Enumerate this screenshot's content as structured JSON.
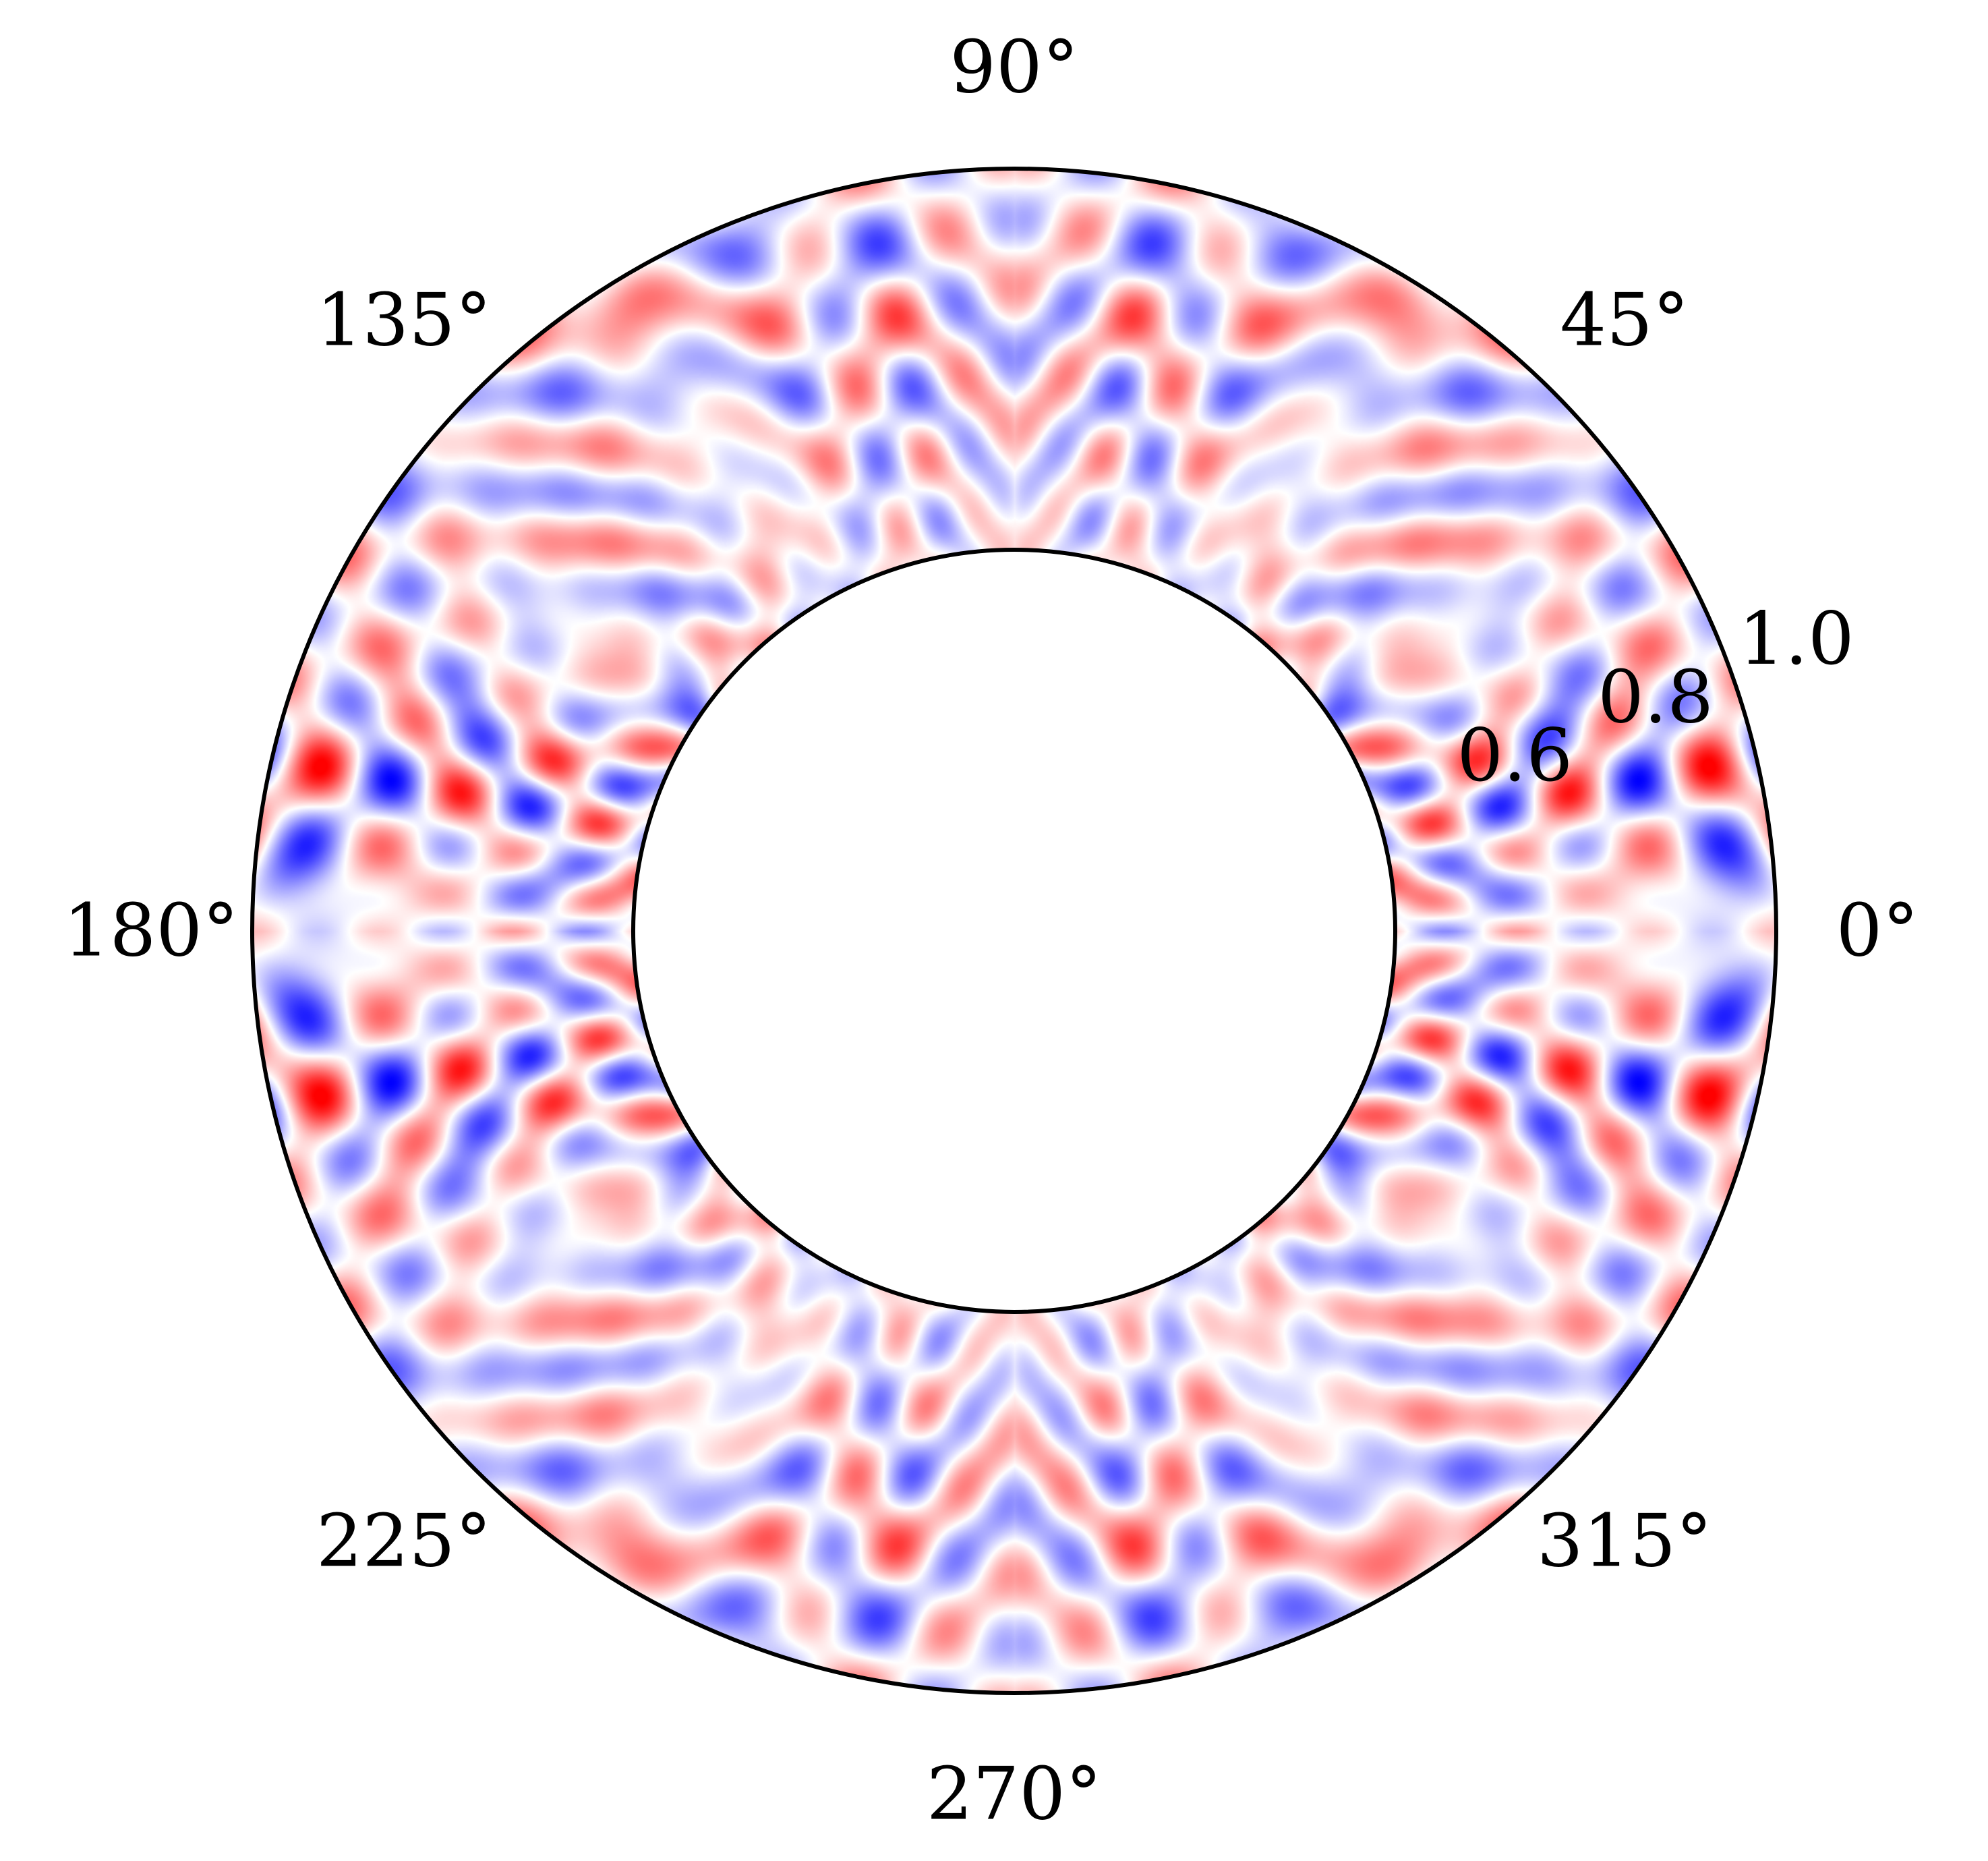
{
  "chart_data": {
    "type": "heatmap",
    "projection": "polar",
    "title": "",
    "angular_ticks": [
      "0°",
      "45°",
      "90°",
      "135°",
      "180°",
      "225°",
      "270°",
      "315°"
    ],
    "angular_tick_degrees": [
      0,
      45,
      90,
      135,
      180,
      225,
      270,
      315
    ],
    "radial_ticks": [
      "0.6",
      "0.8",
      "1.0"
    ],
    "radial_tick_values": [
      0.6,
      0.8,
      1.0
    ],
    "rlim": [
      0.5,
      1.0
    ],
    "theta_range_degrees": [
      0,
      360
    ],
    "colormap": [
      "#0000ff",
      "#ffffff",
      "#ff0000"
    ],
    "value_range": [
      -1,
      1
    ],
    "grid": false,
    "legend": "none"
  }
}
